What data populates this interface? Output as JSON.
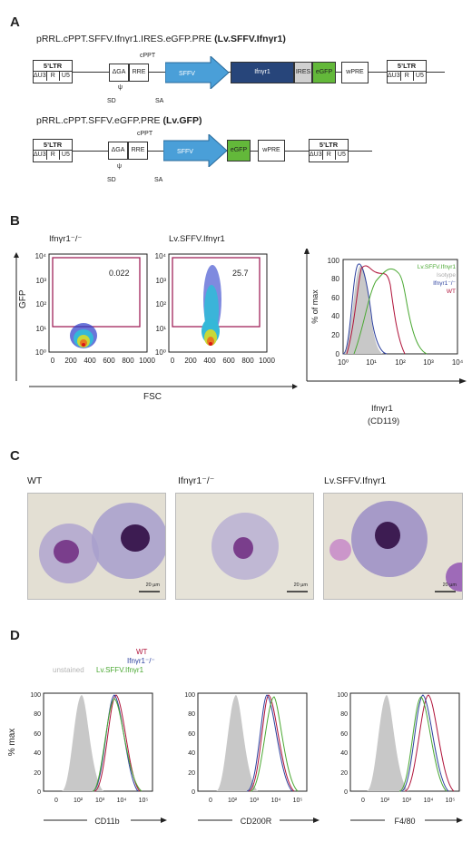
{
  "panel_a": {
    "letter": "A",
    "construct1": {
      "name": "pRRL.cPPT.SFFV.Ifnγr1.IRES.eGFP.PRE ",
      "bold": "(Lv.SFFV.Ifnγr1)"
    },
    "construct2": {
      "name": "pRRL.cPPT.SFFV.eGFP.PRE ",
      "bold": "(Lv.GFP)"
    },
    "ltr_title": "5’LTR",
    "ltr_parts": [
      "ΔU3",
      "R",
      "U5"
    ],
    "ga": "ΔGA",
    "rre": "RRE",
    "cppt": "cPPT",
    "psi": "ψ",
    "sd": "SD",
    "sa": "SA",
    "sffv": "SFFV",
    "ifngr1": "Ifnγr1",
    "ires": "IRES",
    "egfp": "eGFP",
    "wpre": "wPRE",
    "colors": {
      "sffv": "#4a9fd8",
      "ifngr1": "#27457a",
      "ires": "#d0d0d0",
      "egfp": "#63b83a"
    }
  },
  "panel_b": {
    "letter": "B",
    "plot1_title": "Ifnγr1⁻/⁻",
    "plot1_gate": "0.022",
    "plot2_title": "Lv.SFFV.Ifnγr1",
    "plot2_gate": "25.7",
    "x_ticks": [
      "0",
      "200",
      "400",
      "600",
      "800",
      "1000"
    ],
    "y_ticks": [
      "10⁰",
      "10¹",
      "10²",
      "10³",
      "10⁴"
    ],
    "ylabel": "GFP",
    "xlabel": "FSC",
    "hist_ylabel": "% of max",
    "hist_y_ticks": [
      "0",
      "20",
      "40",
      "60",
      "80",
      "100"
    ],
    "hist_x_ticks": [
      "10⁰",
      "10¹",
      "10²",
      "10³",
      "10⁴"
    ],
    "hist_xlabel": "Ifnγr1",
    "hist_xlabel2": "(CD119)",
    "legend": [
      {
        "label": "Lv.SFFV.Ifnγr1",
        "color": "#4aa832"
      },
      {
        "label": "Isotype",
        "color": "#aaaaaa"
      },
      {
        "label": "Ifnγr1⁻/⁻",
        "color": "#2b3f9e"
      },
      {
        "label": "WT",
        "color": "#b0133a"
      }
    ]
  },
  "panel_c": {
    "letter": "C",
    "labels": [
      "WT",
      "Ifnγr1⁻/⁻",
      "Lv.SFFV.Ifnγr1"
    ],
    "scale": "20 µm"
  },
  "panel_d": {
    "letter": "D",
    "legend": [
      {
        "label": "WT",
        "color": "#b0133a"
      },
      {
        "label": "Ifnγr1⁻/⁻",
        "color": "#2b3f9e"
      },
      {
        "label": "unstained",
        "color": "#b5b5b5"
      },
      {
        "label": "Lv.SFFV.Ifnγr1",
        "color": "#4aa832"
      }
    ],
    "ylabel": "% max",
    "y_ticks": [
      "0",
      "20",
      "40",
      "60",
      "80",
      "100"
    ],
    "x_ticks": [
      "0",
      "10²",
      "10³",
      "10⁴",
      "10⁵"
    ],
    "markers": [
      "CD11b",
      "CD200R",
      "F4/80"
    ]
  },
  "chart_data": [
    {
      "type": "scatter",
      "title": "Ifnγr1⁻/⁻",
      "xlabel": "FSC",
      "ylabel": "GFP",
      "xlim": [
        0,
        1000
      ],
      "y_scale": "log",
      "ylim": [
        1,
        10000
      ],
      "gate_percent": 0.022
    },
    {
      "type": "scatter",
      "title": "Lv.SFFV.Ifnγr1",
      "xlabel": "FSC",
      "ylabel": "GFP",
      "xlim": [
        0,
        1000
      ],
      "y_scale": "log",
      "ylim": [
        1,
        10000
      ],
      "gate_percent": 25.7
    },
    {
      "type": "area",
      "xlabel": "Ifnγr1 (CD119)",
      "ylabel": "% of max",
      "x_scale": "log",
      "xlim": [
        1,
        10000
      ],
      "ylim": [
        0,
        100
      ],
      "series": [
        {
          "name": "Lv.SFFV.Ifnγr1",
          "peak_x": 20,
          "peak_y": 95
        },
        {
          "name": "Isotype",
          "peak_x": 3,
          "peak_y": 95
        },
        {
          "name": "Ifnγr1⁻/⁻",
          "peak_x": 3,
          "peak_y": 100
        },
        {
          "name": "WT",
          "peak_x": 7,
          "peak_y": 100
        }
      ]
    },
    {
      "type": "area",
      "xlabel": "CD11b",
      "ylabel": "% max",
      "ylim": [
        0,
        100
      ]
    },
    {
      "type": "area",
      "xlabel": "CD200R",
      "ylabel": "% max",
      "ylim": [
        0,
        100
      ]
    },
    {
      "type": "area",
      "xlabel": "F4/80",
      "ylabel": "% max",
      "ylim": [
        0,
        100
      ]
    }
  ]
}
